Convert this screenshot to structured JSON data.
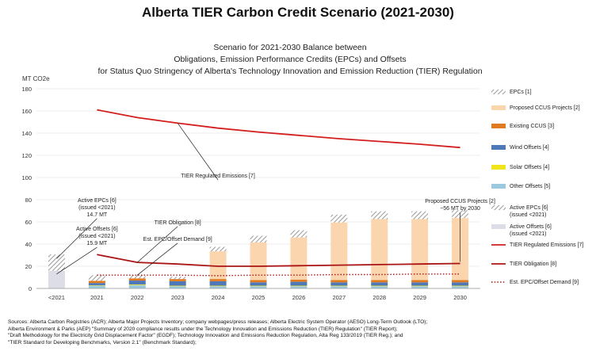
{
  "page_title": "Alberta TIER Carbon Credit Scenario (2021-2030)",
  "colors": {
    "epcs_hatch": "#bdbdbd",
    "proposed_ccus": "#fbd5ad",
    "existing_ccus": "#e07b22",
    "wind_offsets": "#4f78b8",
    "solar_offsets": "#f1e51a",
    "other_offsets": "#9ac9e0",
    "active_offsets": "#dcdde6",
    "regulated_line": "#d41e1e",
    "obligation_line": "#aa1414",
    "demand_line": "#aa1414"
  },
  "chart_data": {
    "type": "stacked-bar-with-lines",
    "title_lines": [
      "Scenario for 2021-2030 Balance between",
      "Obligations, Emission Performance Credits (EPCs) and Offsets",
      "for Status Quo Stringency of Alberta's Technology Innovation and Emission Reduction (TIER) Regulation"
    ],
    "ylabel": "MT CO2e",
    "ylim": [
      0,
      180
    ],
    "yticks": [
      0,
      20,
      40,
      60,
      80,
      100,
      120,
      140,
      160,
      180
    ],
    "categories": [
      "<2021",
      "2021",
      "2022",
      "2023",
      "2024",
      "2025",
      "2026",
      "2027",
      "2028",
      "2029",
      "2030"
    ],
    "series": [
      {
        "name": "Active Offsets [6] (issued <2021)",
        "key": "active_offsets",
        "values": [
          15.9,
          0,
          0,
          0,
          0,
          0,
          0,
          0,
          0,
          0,
          0
        ]
      },
      {
        "name": "Active EPCs [6] (issued <2021)",
        "key": "active_epcs",
        "values": [
          14.7,
          0,
          0,
          0,
          0,
          0,
          0,
          0,
          0,
          0,
          0
        ]
      },
      {
        "name": "Other Offsets [5]",
        "key": "other_offsets",
        "values": [
          0,
          2.5,
          3,
          2,
          2,
          2,
          2,
          2,
          2,
          2,
          2
        ]
      },
      {
        "name": "Solar Offsets [4]",
        "key": "solar_offsets",
        "values": [
          0,
          0.4,
          0.6,
          0.5,
          0.5,
          0.5,
          0.5,
          0.5,
          0.5,
          0.5,
          0.5
        ]
      },
      {
        "name": "Wind Offsets [4]",
        "key": "wind_offsets",
        "values": [
          0,
          2,
          3.5,
          4,
          4,
          3,
          3.5,
          3,
          3,
          3,
          3
        ]
      },
      {
        "name": "Existing CCUS [3]",
        "key": "existing_ccus",
        "values": [
          0,
          2,
          2,
          2,
          2,
          2,
          2,
          2,
          2,
          2,
          2
        ]
      },
      {
        "name": "Proposed CCUS Projects [2]",
        "key": "proposed_ccus",
        "values": [
          0,
          0,
          0,
          0,
          25,
          34,
          38,
          52,
          55,
          55,
          56
        ]
      },
      {
        "name": "EPCs [1]",
        "key": "epcs",
        "values": [
          0,
          5,
          3,
          2,
          4,
          6,
          6.5,
          7,
          7,
          7,
          7
        ]
      }
    ],
    "lines": [
      {
        "name": "TIER Regulated Emissions [7]",
        "key": "regulated",
        "style": "solid",
        "values": [
          null,
          161,
          154,
          149,
          144.5,
          141,
          138,
          135,
          132.5,
          130,
          127
        ]
      },
      {
        "name": "TIER Obligation [8]",
        "key": "obligation",
        "style": "solid",
        "values": [
          null,
          30.5,
          23.5,
          22,
          20,
          20,
          20.5,
          21,
          21.5,
          22,
          22.5
        ]
      },
      {
        "name": "Est. EPC/Offset Demand [9]",
        "key": "demand",
        "style": "dotted",
        "values": [
          null,
          12,
          12,
          12,
          11.5,
          12,
          12,
          12.5,
          12.5,
          13,
          13
        ]
      }
    ],
    "legend": [
      {
        "label": "EPCs [1]",
        "key": "epcs",
        "kind": "hatch"
      },
      {
        "label": "Proposed CCUS Projects [2]",
        "key": "proposed_ccus",
        "kind": "patch"
      },
      {
        "label": "Existing CCUS [3]",
        "key": "existing_ccus",
        "kind": "patch"
      },
      {
        "label": "Wind Offsets [4]",
        "key": "wind_offsets",
        "kind": "patch"
      },
      {
        "label": "Solar Offsets [4]",
        "key": "solar_offsets",
        "kind": "patch"
      },
      {
        "label": "Other Offsets [5]",
        "key": "other_offsets",
        "kind": "patch"
      },
      {
        "label": "Active EPCs [6]",
        "label2": "(issued <2021)",
        "key": "active_epcs",
        "kind": "hatch"
      },
      {
        "label": "Active Offsets [6]",
        "label2": "(issued <2021)",
        "key": "active_offsets",
        "kind": "patch"
      },
      {
        "label": "TIER Regulated Emissions [7]",
        "key": "regulated_line",
        "kind": "line"
      },
      {
        "label": "TIER Obligation [8]",
        "key": "obligation_line",
        "kind": "line"
      },
      {
        "label": "Est. EPC/Offset Demand [9]",
        "key": "demand_line",
        "kind": "dotted"
      }
    ],
    "annotations": [
      {
        "name": "annotation-tier-regulated-emissions",
        "lines": [
          "TIER Regulated Emissions [7]"
        ],
        "point": {
          "cat": "2023",
          "y": 149
        },
        "anchor": {
          "cat": "2024",
          "y": 100
        }
      },
      {
        "name": "annotation-proposed-ccus",
        "lines": [
          "Proposed CCUS Projects [2]",
          "~56 MT by 2030"
        ],
        "point": {
          "cat": "2030",
          "y": 24
        },
        "anchor": {
          "cat": "2030",
          "y": 77
        }
      },
      {
        "name": "annotation-active-epcs",
        "lines": [
          "Active EPCs [6]",
          "(issued <2021)",
          "14.7 MT"
        ],
        "point": {
          "cat": "<2021",
          "y": 27
        },
        "anchor": {
          "cat": "2021",
          "y": 78
        }
      },
      {
        "name": "annotation-active-offsets",
        "lines": [
          "Active Offsets [6]",
          "(issued <2021)",
          "15.9 MT"
        ],
        "point": {
          "cat": "<2021",
          "y": 13
        },
        "anchor": {
          "cat": "2021",
          "y": 52
        }
      },
      {
        "name": "annotation-tier-obligation",
        "lines": [
          "TIER Obligation [8]"
        ],
        "point": {
          "cat": "2022",
          "y": 23.5
        },
        "anchor": {
          "cat": "2023",
          "y": 58
        }
      },
      {
        "name": "annotation-est-demand",
        "lines": [
          "Est. EPC/Offset Demand [9]"
        ],
        "point": {
          "cat": "2022",
          "y": 12
        },
        "anchor": {
          "cat": "2023",
          "y": 43
        }
      }
    ]
  },
  "sources": [
    "Sources: Alberta Carbon Registries (ACR); Alberta Major Projects Inventory; company webpages/press releases; Alberta Electric System Operator (AESO) Long-Term Outlook (LTO);",
    "Alberta Environment & Parks (AEP) \"Summary of 2020 compliance results under the Technology Innovation and Emissions Reduction (TIER) Regulation\" (TIER Report);",
    "\"Draft Methodology for the Electricity Grid Displacement Factor\" (EGDF); Technology Innovation and Emissions Reduction Regulation, Alta Reg 133/2019 (TIER Reg.); and",
    "\"TIER Standard for Developing Benchmarks, Version 2.1\" (Benchmark Standard);"
  ]
}
